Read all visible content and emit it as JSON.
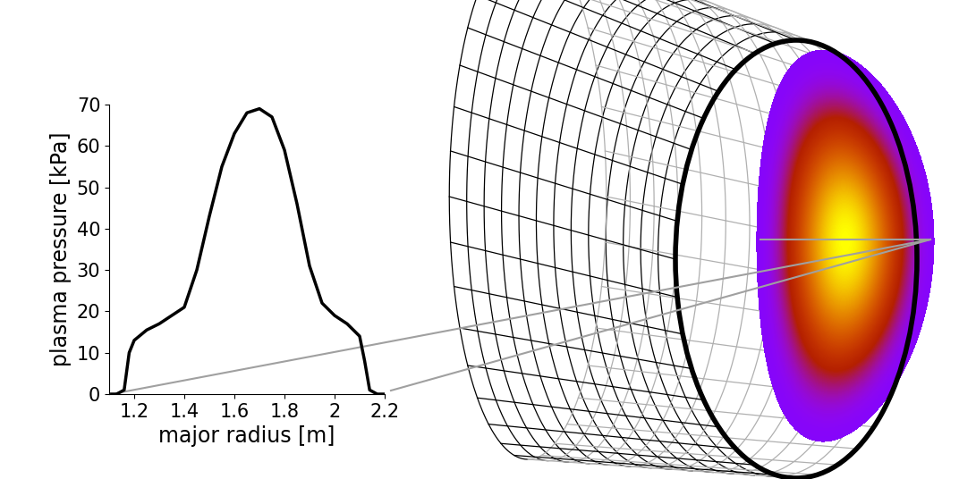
{
  "chart_data": {
    "type": "line",
    "xlabel": "major radius [m]",
    "ylabel": "plasma pressure [kPa]",
    "x": [
      1.11,
      1.13,
      1.16,
      1.18,
      1.2,
      1.25,
      1.3,
      1.35,
      1.4,
      1.45,
      1.5,
      1.55,
      1.6,
      1.65,
      1.7,
      1.75,
      1.8,
      1.85,
      1.9,
      1.95,
      2.0,
      2.05,
      2.1,
      2.12,
      2.14,
      2.17,
      2.2
    ],
    "values": [
      0,
      0,
      1,
      10,
      13,
      15.5,
      17,
      19,
      21,
      30,
      43,
      55,
      63,
      68,
      69,
      67,
      59,
      46,
      31,
      22,
      19,
      17,
      14,
      8,
      1,
      0,
      0
    ],
    "color": "#000000",
    "xlim": [
      1.1,
      2.2
    ],
    "ylim": [
      0,
      70
    ],
    "xticks": [
      1.2,
      1.4,
      1.6,
      1.8,
      2,
      2.2
    ],
    "yticks": [
      0,
      10,
      20,
      30,
      40,
      50,
      60,
      70
    ]
  }
}
